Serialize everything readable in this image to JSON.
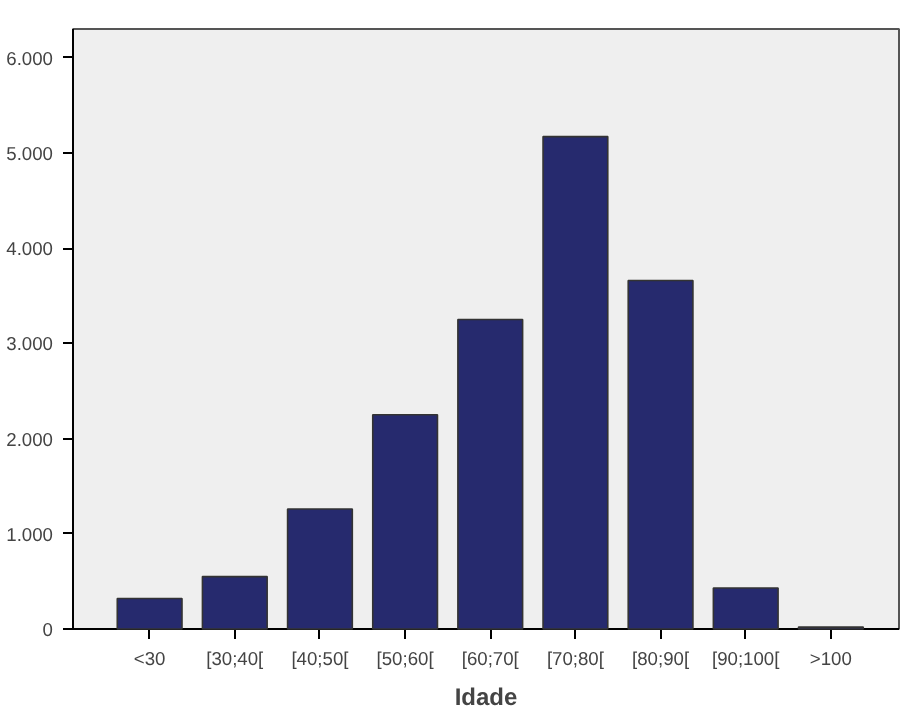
{
  "chart_data": {
    "type": "bar",
    "xlabel": "Idade",
    "categories": [
      "<30",
      "[30;40[",
      "[40;50[",
      "[50;60[",
      "[60;70[",
      "[70;80[",
      "[80;90[",
      "[90;100[",
      ">100"
    ],
    "values": [
      320,
      550,
      1260,
      2250,
      3250,
      5170,
      3660,
      430,
      20
    ],
    "color": "#262a6e",
    "ylim": [
      0,
      6300
    ],
    "yticks": [
      {
        "value": 0,
        "label": "0"
      },
      {
        "value": 1000,
        "label": "1.000"
      },
      {
        "value": 2000,
        "label": "2.000"
      },
      {
        "value": 3000,
        "label": "3.000"
      },
      {
        "value": 4000,
        "label": "4.000"
      },
      {
        "value": 5000,
        "label": "5.000"
      },
      {
        "value": 6000,
        "label": "6.000"
      }
    ],
    "grid": false
  }
}
